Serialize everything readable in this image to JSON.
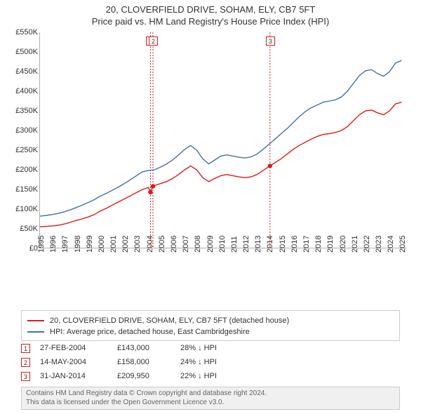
{
  "title": "20, CLOVERFIELD DRIVE, SOHAM, ELY, CB7 5FT",
  "subtitle": "Price paid vs. HM Land Registry's House Price Index (HPI)",
  "chart": {
    "type": "line",
    "background_color": "#ffffff",
    "grid_color": "#e5e5e5",
    "axis_color": "#b0b0b0",
    "x": {
      "min": 1995,
      "max": 2025.5,
      "ticks": [
        1995,
        1996,
        1997,
        1998,
        1999,
        2000,
        2001,
        2002,
        2003,
        2004,
        2005,
        2006,
        2007,
        2008,
        2009,
        2010,
        2011,
        2012,
        2013,
        2014,
        2015,
        2016,
        2017,
        2018,
        2019,
        2020,
        2021,
        2022,
        2023,
        2024,
        2025
      ]
    },
    "y": {
      "min": 0,
      "max": 550000,
      "tick_step": 50000,
      "label_prefix": "£",
      "label_suffix": "K",
      "ticks": [
        0,
        50000,
        100000,
        150000,
        200000,
        250000,
        300000,
        350000,
        400000,
        450000,
        500000,
        550000
      ]
    },
    "series": [
      {
        "name": "20, CLOVERFIELD DRIVE, SOHAM, ELY, CB7 5FT (detached house)",
        "color": "#d91e18",
        "width": 1.4,
        "points": [
          [
            1995.0,
            55000
          ],
          [
            1995.5,
            56000
          ],
          [
            1996.0,
            57000
          ],
          [
            1996.5,
            59000
          ],
          [
            1997.0,
            62000
          ],
          [
            1997.5,
            66000
          ],
          [
            1998.0,
            71000
          ],
          [
            1998.5,
            75000
          ],
          [
            1999.0,
            80000
          ],
          [
            1999.5,
            86000
          ],
          [
            2000.0,
            95000
          ],
          [
            2000.5,
            102000
          ],
          [
            2001.0,
            110000
          ],
          [
            2001.5,
            118000
          ],
          [
            2002.0,
            126000
          ],
          [
            2002.5,
            134000
          ],
          [
            2003.0,
            142000
          ],
          [
            2003.5,
            150000
          ],
          [
            2004.0,
            155000
          ],
          [
            2004.16,
            143000
          ],
          [
            2004.37,
            158000
          ],
          [
            2004.5,
            160000
          ],
          [
            2005.0,
            165000
          ],
          [
            2005.5,
            170000
          ],
          [
            2006.0,
            178000
          ],
          [
            2006.5,
            188000
          ],
          [
            2007.0,
            200000
          ],
          [
            2007.5,
            210000
          ],
          [
            2008.0,
            200000
          ],
          [
            2008.5,
            180000
          ],
          [
            2009.0,
            170000
          ],
          [
            2009.5,
            178000
          ],
          [
            2010.0,
            185000
          ],
          [
            2010.5,
            188000
          ],
          [
            2011.0,
            185000
          ],
          [
            2011.5,
            182000
          ],
          [
            2012.0,
            180000
          ],
          [
            2012.5,
            182000
          ],
          [
            2013.0,
            188000
          ],
          [
            2013.5,
            198000
          ],
          [
            2014.08,
            209950
          ],
          [
            2014.5,
            218000
          ],
          [
            2015.0,
            228000
          ],
          [
            2015.5,
            240000
          ],
          [
            2016.0,
            252000
          ],
          [
            2016.5,
            262000
          ],
          [
            2017.0,
            270000
          ],
          [
            2017.5,
            278000
          ],
          [
            2018.0,
            285000
          ],
          [
            2018.5,
            290000
          ],
          [
            2019.0,
            292000
          ],
          [
            2019.5,
            295000
          ],
          [
            2020.0,
            300000
          ],
          [
            2020.5,
            310000
          ],
          [
            2021.0,
            325000
          ],
          [
            2021.5,
            340000
          ],
          [
            2022.0,
            350000
          ],
          [
            2022.5,
            352000
          ],
          [
            2023.0,
            345000
          ],
          [
            2023.5,
            340000
          ],
          [
            2024.0,
            350000
          ],
          [
            2024.5,
            368000
          ],
          [
            2025.0,
            372000
          ]
        ]
      },
      {
        "name": "HPI: Average price, detached house, East Cambridgeshire",
        "color": "#4a6fa5",
        "width": 1.4,
        "points": [
          [
            1995.0,
            82000
          ],
          [
            1995.5,
            84000
          ],
          [
            1996.0,
            86000
          ],
          [
            1996.5,
            89000
          ],
          [
            1997.0,
            93000
          ],
          [
            1997.5,
            98000
          ],
          [
            1998.0,
            104000
          ],
          [
            1998.5,
            110000
          ],
          [
            1999.0,
            117000
          ],
          [
            1999.5,
            124000
          ],
          [
            2000.0,
            133000
          ],
          [
            2000.5,
            140000
          ],
          [
            2001.0,
            148000
          ],
          [
            2001.5,
            156000
          ],
          [
            2002.0,
            165000
          ],
          [
            2002.5,
            175000
          ],
          [
            2003.0,
            185000
          ],
          [
            2003.5,
            195000
          ],
          [
            2004.0,
            198000
          ],
          [
            2004.5,
            200000
          ],
          [
            2005.0,
            207000
          ],
          [
            2005.5,
            215000
          ],
          [
            2006.0,
            225000
          ],
          [
            2006.5,
            238000
          ],
          [
            2007.0,
            252000
          ],
          [
            2007.5,
            262000
          ],
          [
            2008.0,
            250000
          ],
          [
            2008.5,
            228000
          ],
          [
            2009.0,
            215000
          ],
          [
            2009.5,
            225000
          ],
          [
            2010.0,
            235000
          ],
          [
            2010.5,
            238000
          ],
          [
            2011.0,
            235000
          ],
          [
            2011.5,
            232000
          ],
          [
            2012.0,
            230000
          ],
          [
            2012.5,
            233000
          ],
          [
            2013.0,
            240000
          ],
          [
            2013.5,
            252000
          ],
          [
            2014.0,
            265000
          ],
          [
            2014.5,
            278000
          ],
          [
            2015.0,
            292000
          ],
          [
            2015.5,
            305000
          ],
          [
            2016.0,
            320000
          ],
          [
            2016.5,
            335000
          ],
          [
            2017.0,
            348000
          ],
          [
            2017.5,
            358000
          ],
          [
            2018.0,
            365000
          ],
          [
            2018.5,
            372000
          ],
          [
            2019.0,
            375000
          ],
          [
            2019.5,
            378000
          ],
          [
            2020.0,
            385000
          ],
          [
            2020.5,
            400000
          ],
          [
            2021.0,
            420000
          ],
          [
            2021.5,
            440000
          ],
          [
            2022.0,
            452000
          ],
          [
            2022.5,
            455000
          ],
          [
            2023.0,
            445000
          ],
          [
            2023.5,
            438000
          ],
          [
            2024.0,
            450000
          ],
          [
            2024.5,
            472000
          ],
          [
            2025.0,
            478000
          ]
        ]
      }
    ],
    "sale_points": [
      {
        "year": 2004.16,
        "value": 143000
      },
      {
        "year": 2004.37,
        "value": 158000
      },
      {
        "year": 2014.08,
        "value": 209950
      }
    ],
    "markers": [
      {
        "label": "1",
        "year": 2004.16,
        "color": "#d91e18"
      },
      {
        "label": "2",
        "year": 2004.37,
        "color": "#d91e18"
      },
      {
        "label": "3",
        "year": 2014.08,
        "color": "#d91e18"
      }
    ]
  },
  "legend": {
    "items": [
      {
        "color": "#d91e18",
        "label": "20, CLOVERFIELD DRIVE, SOHAM, ELY, CB7 5FT (detached house)"
      },
      {
        "color": "#4a6fa5",
        "label": "HPI: Average price, detached house, East Cambridgeshire"
      }
    ]
  },
  "events": [
    {
      "marker": "1",
      "marker_color": "#d91e18",
      "date": "27-FEB-2004",
      "price": "£143,000",
      "relation": "28% ↓ HPI"
    },
    {
      "marker": "2",
      "marker_color": "#d91e18",
      "date": "14-MAY-2004",
      "price": "£158,000",
      "relation": "24% ↓ HPI"
    },
    {
      "marker": "3",
      "marker_color": "#d91e18",
      "date": "31-JAN-2014",
      "price": "£209,950",
      "relation": "22% ↓ HPI"
    }
  ],
  "attribution": {
    "line1": "Contains HM Land Registry data © Crown copyright and database right 2024.",
    "line2": "This data is licensed under the Open Government Licence v3.0."
  }
}
